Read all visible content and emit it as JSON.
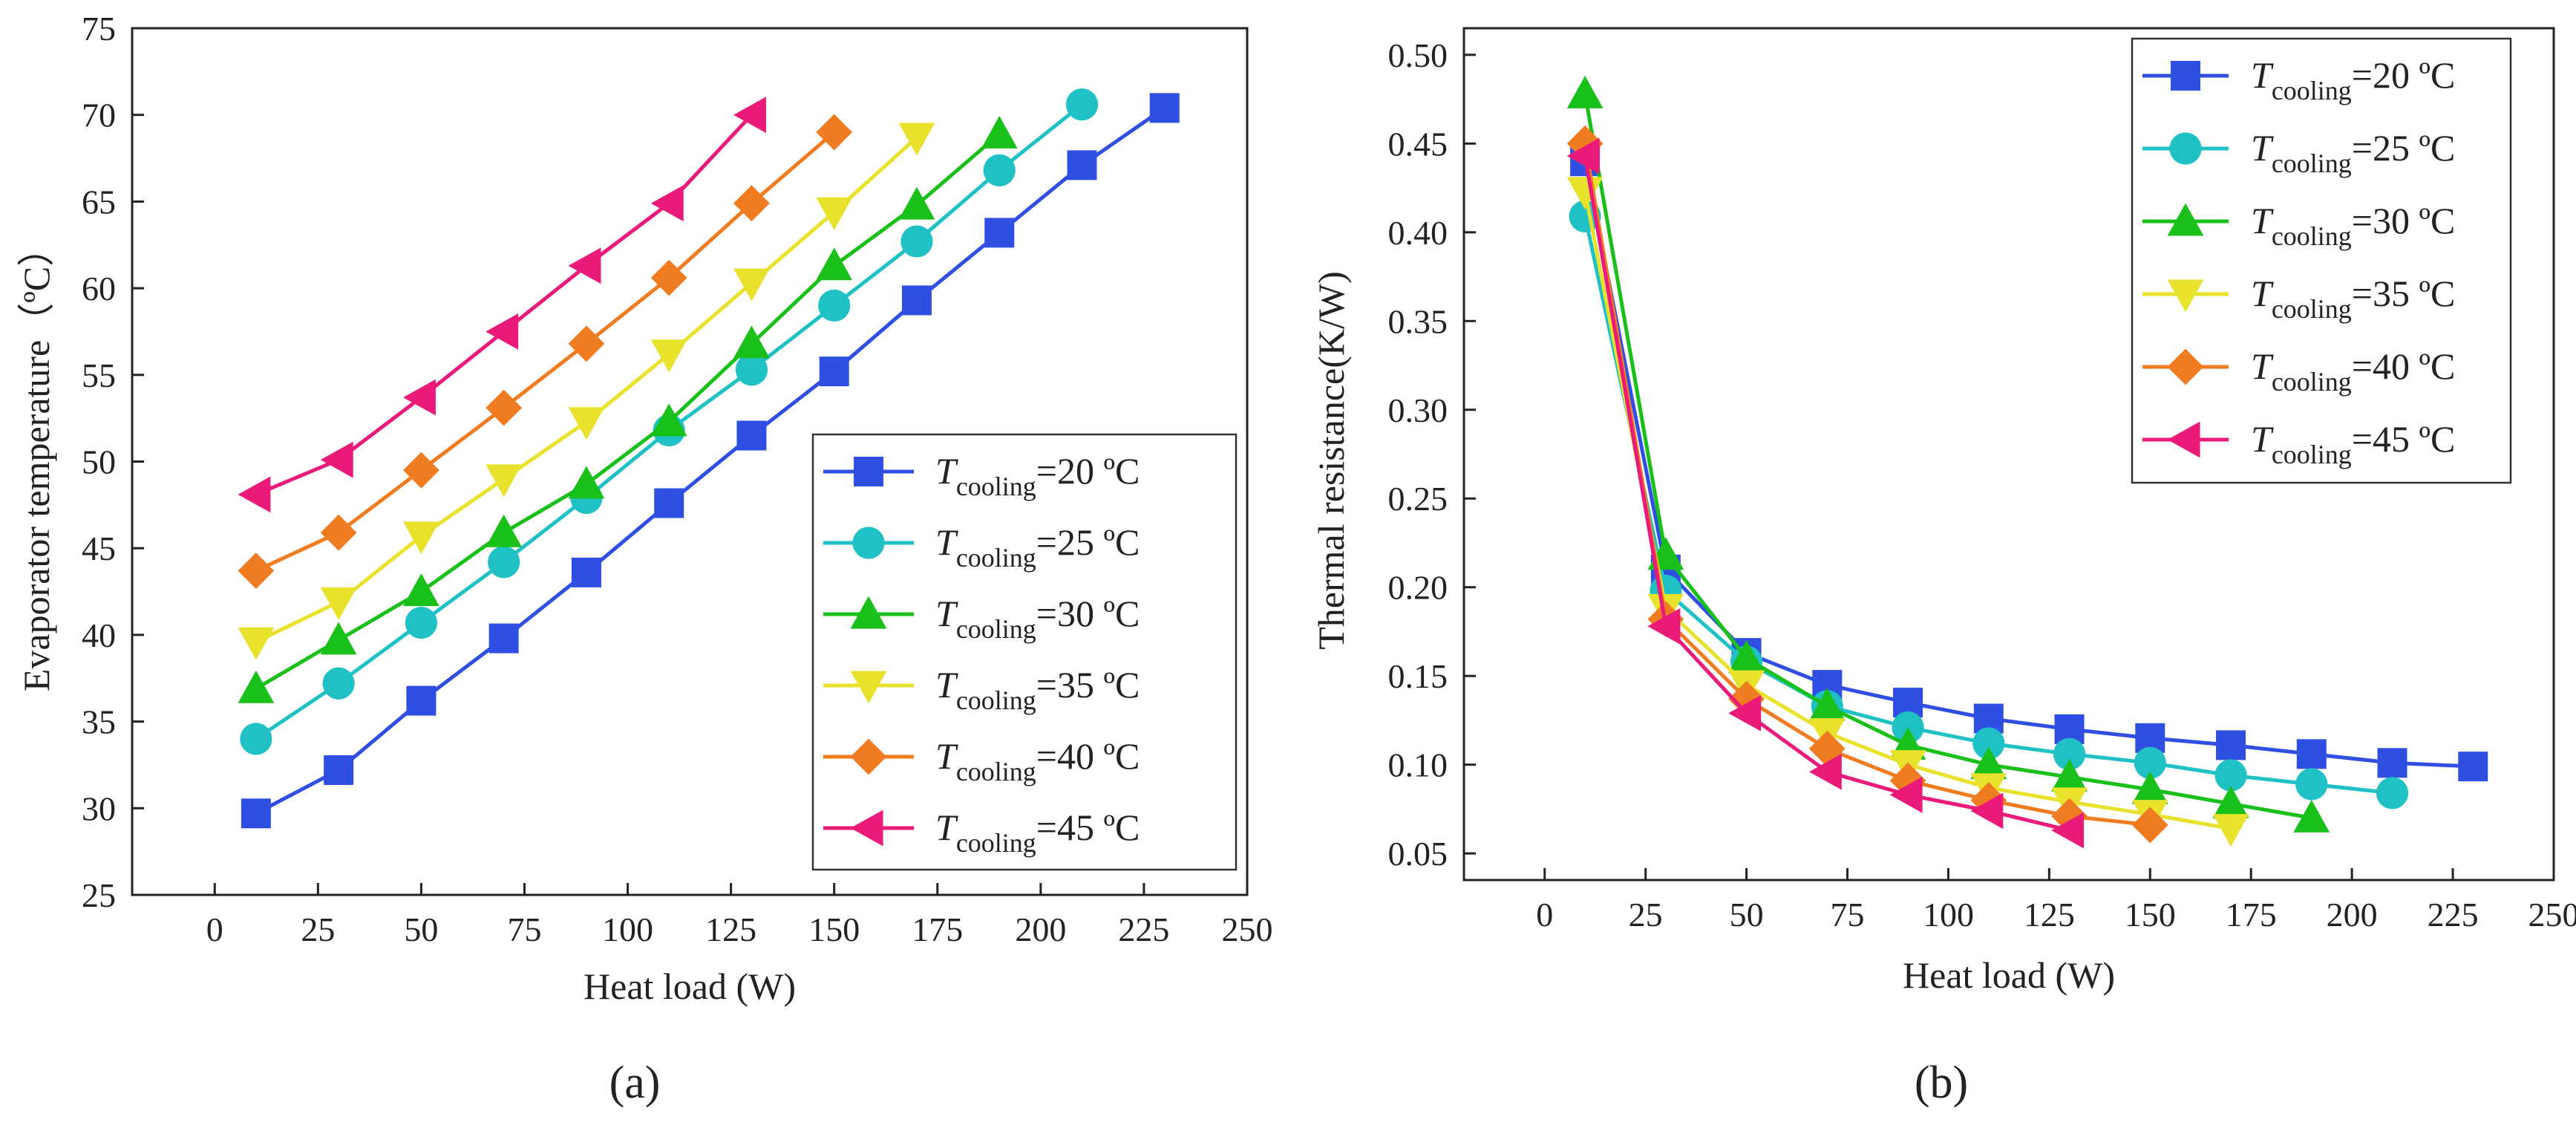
{
  "figure": {
    "panel_labels": [
      "(a)",
      "(b)"
    ]
  },
  "chart_data": [
    {
      "type": "line",
      "panel": "a",
      "xlabel": "Heat load (W)",
      "ylabel": "Evaporator temperature（ºC）",
      "xlim": [
        -20,
        250
      ],
      "ylim": [
        25,
        75
      ],
      "xticks": [
        0,
        25,
        50,
        75,
        100,
        125,
        150,
        175,
        200,
        225,
        250
      ],
      "yticks": [
        25,
        30,
        35,
        40,
        45,
        50,
        55,
        60,
        65,
        70,
        75
      ],
      "legend_position": "bottom-right",
      "legend_symbol": "T",
      "legend_subscript": "cooling",
      "legend_unit": "ºC",
      "series": [
        {
          "name": "20",
          "label": "=20 ºC",
          "color": "#2f4fe3",
          "marker": "square",
          "x": [
            10,
            30,
            50,
            70,
            90,
            110,
            130,
            150,
            170,
            190,
            210,
            230
          ],
          "y": [
            29.7,
            32.2,
            36.2,
            39.8,
            43.6,
            47.6,
            51.5,
            55.2,
            59.3,
            63.2,
            67.1,
            70.4
          ]
        },
        {
          "name": "25",
          "label": "=25 ºC",
          "color": "#1fc1c4",
          "marker": "circle",
          "x": [
            10,
            30,
            50,
            70,
            90,
            110,
            130,
            150,
            170,
            190,
            210
          ],
          "y": [
            34.0,
            37.2,
            40.7,
            44.2,
            47.9,
            51.8,
            55.3,
            59.0,
            62.7,
            66.8,
            70.6
          ]
        },
        {
          "name": "30",
          "label": "=30 ºC",
          "color": "#19c019",
          "marker": "triangle-up",
          "x": [
            10,
            30,
            50,
            70,
            90,
            110,
            130,
            150,
            170,
            190
          ],
          "y": [
            36.9,
            39.7,
            42.5,
            45.9,
            48.7,
            52.3,
            56.8,
            61.3,
            64.8,
            68.9
          ]
        },
        {
          "name": "35",
          "label": "=35 ºC",
          "color": "#e9e22c",
          "marker": "triangle-down",
          "x": [
            10,
            30,
            50,
            70,
            90,
            110,
            130,
            150,
            170
          ],
          "y": [
            39.6,
            41.9,
            45.7,
            49.0,
            52.3,
            56.2,
            60.3,
            64.4,
            68.7
          ]
        },
        {
          "name": "40",
          "label": "=40 ºC",
          "color": "#f07c22",
          "marker": "diamond",
          "x": [
            10,
            30,
            50,
            70,
            90,
            110,
            130,
            150
          ],
          "y": [
            43.7,
            45.9,
            49.5,
            53.1,
            56.8,
            60.6,
            64.9,
            69.0
          ]
        },
        {
          "name": "45",
          "label": "=45 ºC",
          "color": "#ea1a7a",
          "marker": "triangle-left",
          "x": [
            10,
            30,
            50,
            70,
            90,
            110,
            130
          ],
          "y": [
            48.1,
            50.1,
            53.7,
            57.5,
            61.3,
            64.9,
            70.0
          ]
        }
      ]
    },
    {
      "type": "line",
      "panel": "b",
      "xlabel": "Heat load (W)",
      "ylabel": "Thermal resistance(K/W)",
      "xlim": [
        -20,
        250
      ],
      "ylim": [
        0.035,
        0.515
      ],
      "xticks": [
        0,
        25,
        50,
        75,
        100,
        125,
        150,
        175,
        200,
        225,
        250
      ],
      "yticks": [
        0.05,
        0.1,
        0.15,
        0.2,
        0.25,
        0.3,
        0.35,
        0.4,
        0.45,
        0.5
      ],
      "ytick_labels": [
        "0.05",
        "0.10",
        "0.15",
        "0.20",
        "0.25",
        "0.30",
        "0.35",
        "0.40",
        "0.45",
        "0.50"
      ],
      "legend_position": "top-right",
      "legend_symbol": "T",
      "legend_subscript": "cooling",
      "legend_unit": "ºC",
      "series": [
        {
          "name": "20",
          "label": "=20 ºC",
          "color": "#2f4fe3",
          "marker": "square",
          "x": [
            10,
            30,
            50,
            70,
            90,
            110,
            130,
            150,
            170,
            190,
            210,
            230
          ],
          "y": [
            0.44,
            0.21,
            0.163,
            0.145,
            0.135,
            0.126,
            0.12,
            0.115,
            0.111,
            0.106,
            0.101,
            0.099
          ]
        },
        {
          "name": "25",
          "label": "=25 ºC",
          "color": "#1fc1c4",
          "marker": "circle",
          "x": [
            10,
            30,
            50,
            70,
            90,
            110,
            130,
            150,
            170,
            190,
            210
          ],
          "y": [
            0.409,
            0.198,
            0.158,
            0.133,
            0.121,
            0.112,
            0.106,
            0.101,
            0.094,
            0.089,
            0.084
          ]
        },
        {
          "name": "30",
          "label": "=30 ºC",
          "color": "#19c019",
          "marker": "triangle-up",
          "x": [
            10,
            30,
            50,
            70,
            90,
            110,
            130,
            150,
            170,
            190
          ],
          "y": [
            0.478,
            0.218,
            0.16,
            0.133,
            0.111,
            0.1,
            0.093,
            0.086,
            0.078,
            0.07
          ]
        },
        {
          "name": "35",
          "label": "=35 ºC",
          "color": "#e9e22c",
          "marker": "triangle-down",
          "x": [
            10,
            30,
            50,
            70,
            90,
            110,
            130,
            150,
            170
          ],
          "y": [
            0.423,
            0.188,
            0.145,
            0.118,
            0.1,
            0.087,
            0.079,
            0.072,
            0.064
          ]
        },
        {
          "name": "40",
          "label": "=40 ºC",
          "color": "#f07c22",
          "marker": "diamond",
          "x": [
            10,
            30,
            50,
            70,
            90,
            110,
            130,
            150
          ],
          "y": [
            0.45,
            0.182,
            0.137,
            0.109,
            0.091,
            0.08,
            0.071,
            0.066
          ]
        },
        {
          "name": "45",
          "label": "=45 ºC",
          "color": "#ea1a7a",
          "marker": "triangle-left",
          "x": [
            10,
            30,
            50,
            70,
            90,
            110,
            130
          ],
          "y": [
            0.443,
            0.178,
            0.129,
            0.096,
            0.083,
            0.074,
            0.063
          ]
        }
      ]
    }
  ]
}
